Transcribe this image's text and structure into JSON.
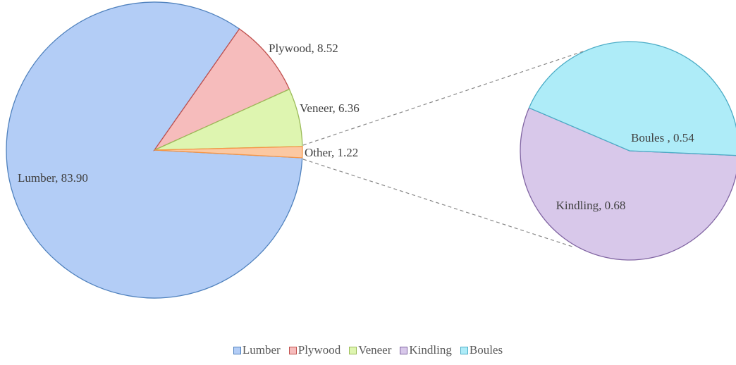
{
  "chart_data": {
    "type": "pie-of-pie",
    "primary": {
      "categories": [
        "Lumber",
        "Plywood",
        "Veneer",
        "Other"
      ],
      "values": [
        83.9,
        8.52,
        6.36,
        1.22
      ],
      "value_labels": [
        "Lumber, 83.90",
        "Plywood, 8.52",
        "Veneer, 6.36",
        "Other, 1.22"
      ],
      "colors": [
        "#b3cdf6",
        "#f6bcbc",
        "#def5b0",
        "#fbc8a2"
      ],
      "edgecolors": [
        "#4f81bd",
        "#c0504d",
        "#9bbb59",
        "#f79646"
      ]
    },
    "secondary": {
      "categories": [
        "Kindling",
        "Boules"
      ],
      "values": [
        0.68,
        0.54
      ],
      "value_labels": [
        "Kindling, 0.68",
        "Boules , 0.54"
      ],
      "colors": [
        "#d8c8ea",
        "#aeecf8"
      ],
      "edgecolors": [
        "#8064a2",
        "#4bacc6"
      ]
    },
    "legend": true
  }
}
